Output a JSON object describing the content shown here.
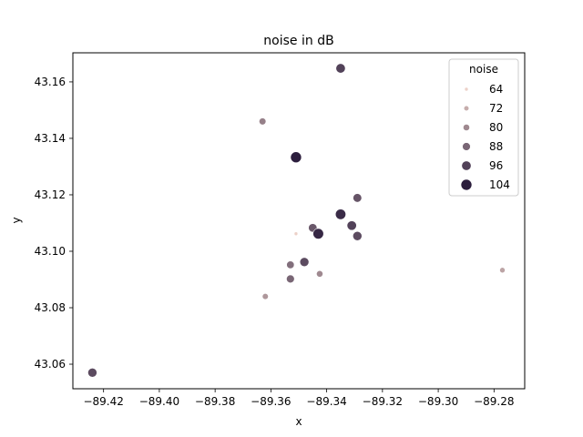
{
  "chart_data": {
    "type": "scatter",
    "title": "noise in dB",
    "xlabel": "x",
    "ylabel": "y",
    "xlim": [
      -89.431,
      -89.269
    ],
    "ylim": [
      43.0513,
      43.1703
    ],
    "xticks": [
      -89.42,
      -89.4,
      -89.38,
      -89.36,
      -89.34,
      -89.32,
      -89.3,
      -89.28
    ],
    "xtick_labels": [
      "−89.42",
      "−89.40",
      "−89.38",
      "−89.36",
      "−89.34",
      "−89.32",
      "−89.30",
      "−89.28"
    ],
    "yticks": [
      43.06,
      43.08,
      43.1,
      43.12,
      43.14,
      43.16
    ],
    "ytick_labels": [
      "43.06",
      "43.08",
      "43.10",
      "43.12",
      "43.14",
      "43.16"
    ],
    "grid": false,
    "legend": {
      "title": "noise",
      "position": "top-right",
      "entries": [
        {
          "label": "64",
          "value": 64
        },
        {
          "label": "72",
          "value": 72
        },
        {
          "label": "80",
          "value": 80
        },
        {
          "label": "88",
          "value": 88
        },
        {
          "label": "96",
          "value": 96
        },
        {
          "label": "104",
          "value": 104
        }
      ]
    },
    "color_scale": {
      "min": 64,
      "max": 104,
      "light": "#ecd1c8",
      "dark": "#2c1e3d"
    },
    "points": [
      {
        "x": -89.424,
        "y": 43.057,
        "noise": 94
      },
      {
        "x": -89.363,
        "y": 43.146,
        "noise": 82
      },
      {
        "x": -89.362,
        "y": 43.084,
        "noise": 77
      },
      {
        "x": -89.353,
        "y": 43.0952,
        "noise": 86
      },
      {
        "x": -89.353,
        "y": 43.0902,
        "noise": 88
      },
      {
        "x": -89.351,
        "y": 43.1333,
        "noise": 104
      },
      {
        "x": -89.351,
        "y": 43.1062,
        "noise": 64
      },
      {
        "x": -89.348,
        "y": 43.0962,
        "noise": 94
      },
      {
        "x": -89.345,
        "y": 43.1083,
        "noise": 91
      },
      {
        "x": -89.343,
        "y": 43.1062,
        "noise": 102
      },
      {
        "x": -89.3425,
        "y": 43.092,
        "noise": 80
      },
      {
        "x": -89.335,
        "y": 43.1648,
        "noise": 96
      },
      {
        "x": -89.335,
        "y": 43.1131,
        "noise": 101
      },
      {
        "x": -89.331,
        "y": 43.1091,
        "noise": 96
      },
      {
        "x": -89.329,
        "y": 43.1189,
        "noise": 92
      },
      {
        "x": -89.329,
        "y": 43.1054,
        "noise": 94
      },
      {
        "x": -89.277,
        "y": 43.0933,
        "noise": 74
      }
    ]
  }
}
